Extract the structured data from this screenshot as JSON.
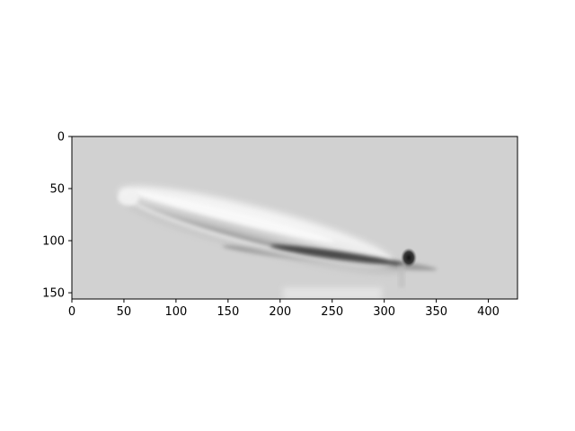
{
  "figure": {
    "background": "#ffffff",
    "image": {
      "description_kind": "grayscale microscopy image",
      "colormap": "gray",
      "background_tone": "#d2d2d2",
      "rows": 156,
      "cols": 428
    },
    "axes": {
      "x": {
        "ticks": [
          0,
          50,
          100,
          150,
          200,
          250,
          300,
          350,
          400
        ],
        "labels": [
          "0",
          "50",
          "100",
          "150",
          "200",
          "250",
          "300",
          "350",
          "400"
        ],
        "range": [
          0,
          428
        ]
      },
      "y": {
        "ticks": [
          0,
          50,
          100,
          150
        ],
        "labels": [
          "0",
          "50",
          "100",
          "150"
        ],
        "range": [
          0,
          156
        ],
        "inverted": true
      }
    }
  }
}
